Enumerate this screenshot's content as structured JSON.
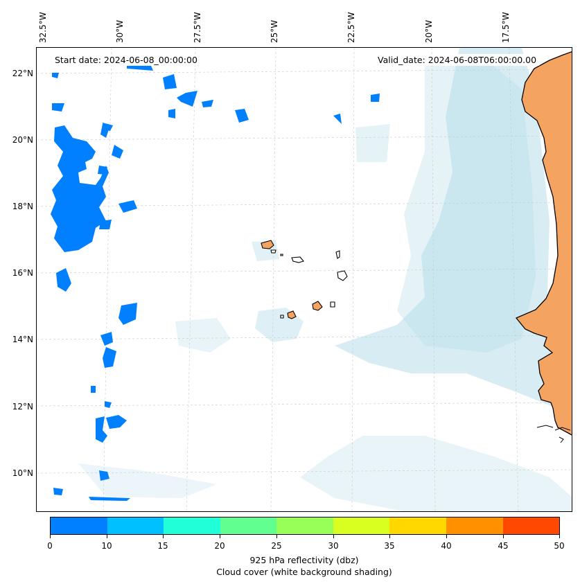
{
  "map": {
    "start_date": "Start date: 2024-06-08_00:00:00",
    "valid_date": "Valid_date: 2024-06-08T06:00:00.00",
    "lon_labels": [
      "32.5°W",
      "30°W",
      "27.5°W",
      "25°W",
      "22.5°W",
      "20°W",
      "17.5°W"
    ],
    "lat_labels": [
      "22°N",
      "20°N",
      "18°N",
      "16°N",
      "14°N",
      "12°N",
      "10°N"
    ],
    "land_color": "#f4a460",
    "cloud_color": "#add8e6",
    "radar_color": "#0080ff",
    "features": [
      "Cape Verde islands",
      "West African coast"
    ]
  },
  "colorbar": {
    "ticks": [
      "0",
      "10",
      "15",
      "20",
      "25",
      "30",
      "35",
      "40",
      "45",
      "50"
    ],
    "colors": [
      "#0080ff",
      "#00c0ff",
      "#20ffd8",
      "#60ff90",
      "#98ff58",
      "#d8ff20",
      "#ffd800",
      "#ff9000",
      "#ff4800"
    ],
    "label": "925 hPa reflectivity (dbz)",
    "sublabel": "Cloud cover (white background shading)"
  }
}
